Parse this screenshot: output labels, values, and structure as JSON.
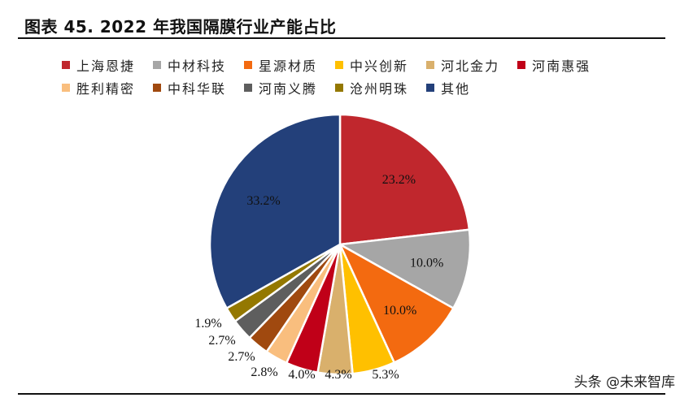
{
  "title": "图表 45. 2022 年我国隔膜行业产能占比",
  "watermark": "头条 @未来智库",
  "chart_data": {
    "type": "pie",
    "title": "图表 45. 2022 年我国隔膜行业产能占比",
    "legend_position": "top",
    "slices": [
      {
        "label": "上海恩捷",
        "value": 23.2,
        "display": "23.2%",
        "color": "#C0272D"
      },
      {
        "label": "中材科技",
        "value": 10.0,
        "display": "10.0%",
        "color": "#A6A6A6"
      },
      {
        "label": "星源材质",
        "value": 10.0,
        "display": "10.0%",
        "color": "#F36A10"
      },
      {
        "label": "中兴创新",
        "value": 5.3,
        "display": "5.3%",
        "color": "#FFC000"
      },
      {
        "label": "河北金力",
        "value": 4.3,
        "display": "4.3%",
        "color": "#D9B06C"
      },
      {
        "label": "河南惠强",
        "value": 4.0,
        "display": "4.0%",
        "color": "#C00018"
      },
      {
        "label": "胜利精密",
        "value": 2.8,
        "display": "2.8%",
        "color": "#F9BE7E"
      },
      {
        "label": "中科华联",
        "value": 2.7,
        "display": "2.7%",
        "color": "#A0490F"
      },
      {
        "label": "河南义腾",
        "value": 2.7,
        "display": "2.7%",
        "color": "#5E5E5E"
      },
      {
        "label": "沧州明珠",
        "value": 1.9,
        "display": "1.9%",
        "color": "#947800"
      },
      {
        "label": "其他",
        "value": 33.2,
        "display": "33.2%",
        "color": "#23407A"
      }
    ]
  }
}
